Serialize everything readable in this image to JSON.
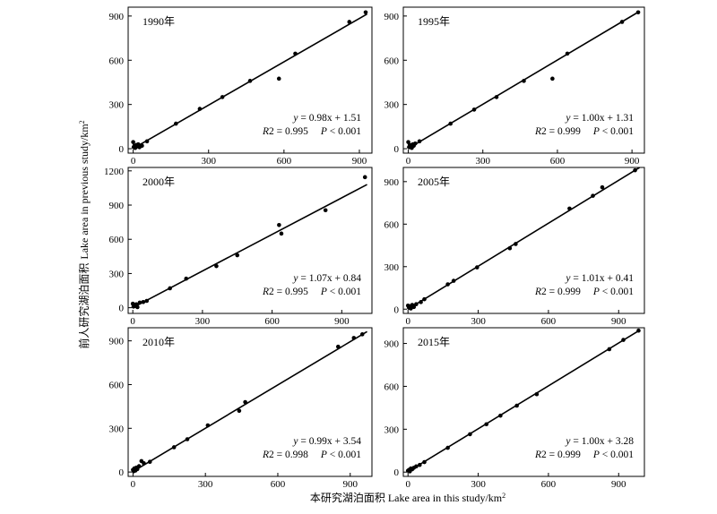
{
  "axis_titles": {
    "x_cn": "本研究湖泊面积",
    "x_en": " Lake area in this study/km",
    "y_cn": "前人研究湖泊面积",
    "y_en": "Lake area in previous study/km",
    "unit_sup": "2"
  },
  "chart_data": [
    {
      "type": "scatter",
      "title": "1990年",
      "xlim": [
        -20,
        950
      ],
      "ylim": [
        -30,
        960
      ],
      "xticks": [
        0,
        300,
        600,
        900
      ],
      "yticks": [
        0,
        300,
        600,
        900
      ],
      "equation": {
        "y": "y",
        "rhs": " = 0.98x + 1.51",
        "r2": "R",
        "r2_val": "2 = 0.995",
        "p": "P",
        "p_val": " < 0.001"
      },
      "fit": {
        "slope": 0.98,
        "intercept": 1.51
      },
      "points": [
        [
          0,
          45
        ],
        [
          2,
          10
        ],
        [
          5,
          20
        ],
        [
          8,
          5
        ],
        [
          12,
          25
        ],
        [
          15,
          15
        ],
        [
          20,
          30
        ],
        [
          25,
          10
        ],
        [
          35,
          20
        ],
        [
          55,
          50
        ],
        [
          170,
          170
        ],
        [
          265,
          270
        ],
        [
          355,
          350
        ],
        [
          465,
          460
        ],
        [
          580,
          475
        ],
        [
          645,
          645
        ],
        [
          860,
          860
        ],
        [
          925,
          925
        ]
      ]
    },
    {
      "type": "scatter",
      "title": "1995年",
      "xlim": [
        -20,
        950
      ],
      "ylim": [
        -30,
        960
      ],
      "xticks": [
        0,
        300,
        600,
        900
      ],
      "yticks": [
        0,
        300,
        600,
        900
      ],
      "equation": {
        "y": "y",
        "rhs": " = 1.00x + 1.31",
        "r2": "R",
        "r2_val": "2 = 0.999",
        "p": "P",
        "p_val": " < 0.001"
      },
      "fit": {
        "slope": 1.0,
        "intercept": 1.31
      },
      "points": [
        [
          0,
          45
        ],
        [
          3,
          10
        ],
        [
          6,
          25
        ],
        [
          10,
          15
        ],
        [
          14,
          5
        ],
        [
          18,
          30
        ],
        [
          22,
          20
        ],
        [
          28,
          35
        ],
        [
          45,
          50
        ],
        [
          170,
          170
        ],
        [
          265,
          265
        ],
        [
          355,
          350
        ],
        [
          465,
          460
        ],
        [
          580,
          475
        ],
        [
          640,
          645
        ],
        [
          860,
          860
        ],
        [
          925,
          925
        ]
      ]
    },
    {
      "type": "scatter",
      "title": "2000年",
      "xlim": [
        -20,
        1030
      ],
      "ylim": [
        -50,
        1230
      ],
      "xticks": [
        0,
        300,
        600,
        900
      ],
      "yticks": [
        0,
        300,
        600,
        900,
        1200
      ],
      "equation": {
        "y": "y",
        "rhs": " = 1.07x + 0.84",
        "r2": "R",
        "r2_val": "2 = 0.995",
        "p": "P",
        "p_val": " < 0.001"
      },
      "fit": {
        "slope": 1.07,
        "intercept": 0.84
      },
      "points": [
        [
          0,
          35
        ],
        [
          3,
          10
        ],
        [
          6,
          25
        ],
        [
          10,
          15
        ],
        [
          15,
          30
        ],
        [
          20,
          5
        ],
        [
          30,
          45
        ],
        [
          45,
          50
        ],
        [
          60,
          60
        ],
        [
          160,
          170
        ],
        [
          230,
          255
        ],
        [
          360,
          365
        ],
        [
          450,
          460
        ],
        [
          630,
          725
        ],
        [
          640,
          650
        ],
        [
          830,
          855
        ],
        [
          1000,
          1145
        ]
      ]
    },
    {
      "type": "scatter",
      "title": "2005年",
      "xlim": [
        -20,
        1010
      ],
      "ylim": [
        -30,
        1000
      ],
      "xticks": [
        0,
        300,
        600,
        900
      ],
      "yticks": [
        0,
        300,
        600,
        900
      ],
      "equation": {
        "y": "y",
        "rhs": " = 1.01x + 0.41",
        "r2": "R",
        "r2_val": "2 = 0.999",
        "p": "P",
        "p_val": " < 0.001"
      },
      "fit": {
        "slope": 1.01,
        "intercept": 0.41
      },
      "points": [
        [
          0,
          25
        ],
        [
          4,
          10
        ],
        [
          8,
          20
        ],
        [
          12,
          5
        ],
        [
          18,
          30
        ],
        [
          25,
          15
        ],
        [
          35,
          35
        ],
        [
          55,
          50
        ],
        [
          70,
          70
        ],
        [
          170,
          175
        ],
        [
          195,
          200
        ],
        [
          295,
          295
        ],
        [
          435,
          430
        ],
        [
          460,
          460
        ],
        [
          690,
          710
        ],
        [
          790,
          800
        ],
        [
          830,
          860
        ],
        [
          970,
          980
        ]
      ]
    },
    {
      "type": "scatter",
      "title": "2010年",
      "xlim": [
        -20,
        990
      ],
      "ylim": [
        -30,
        990
      ],
      "xticks": [
        0,
        300,
        600,
        900
      ],
      "yticks": [
        0,
        300,
        600,
        900
      ],
      "equation": {
        "y": "y",
        "rhs": " = 0.99x + 3.54",
        "r2": "R",
        "r2_val": "2 = 0.998",
        "p": "P",
        "p_val": " < 0.001"
      },
      "fit": {
        "slope": 0.99,
        "intercept": 3.54
      },
      "points": [
        [
          0,
          15
        ],
        [
          3,
          5
        ],
        [
          6,
          25
        ],
        [
          10,
          10
        ],
        [
          14,
          30
        ],
        [
          18,
          20
        ],
        [
          25,
          40
        ],
        [
          35,
          75
        ],
        [
          45,
          60
        ],
        [
          70,
          70
        ],
        [
          170,
          170
        ],
        [
          225,
          225
        ],
        [
          310,
          320
        ],
        [
          440,
          420
        ],
        [
          465,
          480
        ],
        [
          850,
          860
        ],
        [
          915,
          920
        ],
        [
          950,
          945
        ]
      ]
    },
    {
      "type": "scatter",
      "title": "2015年",
      "xlim": [
        -20,
        1010
      ],
      "ylim": [
        -30,
        1010
      ],
      "xticks": [
        0,
        300,
        600,
        900
      ],
      "yticks": [
        0,
        300,
        600,
        900
      ],
      "equation": {
        "y": "y",
        "rhs": " = 1.00x + 3.28",
        "r2": "R",
        "r2_val": "2 = 0.999",
        "p": "P",
        "p_val": " < 0.001"
      },
      "fit": {
        "slope": 1.0,
        "intercept": 3.28
      },
      "points": [
        [
          0,
          10
        ],
        [
          4,
          15
        ],
        [
          8,
          5
        ],
        [
          12,
          25
        ],
        [
          18,
          20
        ],
        [
          25,
          30
        ],
        [
          35,
          40
        ],
        [
          50,
          50
        ],
        [
          70,
          70
        ],
        [
          170,
          170
        ],
        [
          265,
          265
        ],
        [
          335,
          335
        ],
        [
          395,
          395
        ],
        [
          465,
          465
        ],
        [
          550,
          545
        ],
        [
          860,
          860
        ],
        [
          920,
          925
        ],
        [
          985,
          990
        ]
      ]
    }
  ]
}
